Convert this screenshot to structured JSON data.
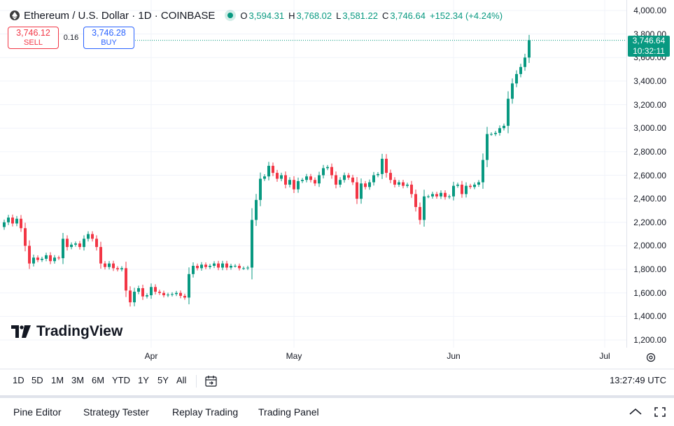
{
  "header": {
    "title": "Ethereum / U.S. Dollar · 1D · COINBASE",
    "ohlc": [
      {
        "key": "O",
        "value": "3,594.31"
      },
      {
        "key": "H",
        "value": "3,768.02"
      },
      {
        "key": "L",
        "value": "3,581.22"
      },
      {
        "key": "C",
        "value": "3,746.64"
      }
    ],
    "change": "+152.34 (+4.24%)",
    "status_color": "#089981"
  },
  "trade": {
    "sell_price": "3,746.12",
    "sell_label": "SELL",
    "spread": "0.16",
    "buy_price": "3,746.28",
    "buy_label": "BUY"
  },
  "last_price": {
    "value": "3,746.64",
    "countdown": "10:32:11"
  },
  "logo_text": "TradingView",
  "chart_data": {
    "type": "candlestick",
    "up_color": "#089981",
    "down_color": "#f23645",
    "y_ticks": [
      "4,000.00",
      "3,800.00",
      "3,600.00",
      "3,400.00",
      "3,200.00",
      "3,000.00",
      "2,800.00",
      "2,600.00",
      "2,400.00",
      "2,200.00",
      "2,000.00",
      "1,800.00",
      "1,600.00",
      "1,400.00",
      "1,200.00"
    ],
    "ylim": [
      1200,
      4000
    ],
    "x_ticks": [
      "Apr",
      "May",
      "Jun",
      "Jul"
    ],
    "last_price": 3746.64,
    "close": [
      2200,
      2240,
      2190,
      2230,
      2150,
      2000,
      1850,
      1900,
      1880,
      1890,
      1920,
      1870,
      1900,
      1895,
      2060,
      1990,
      2010,
      2020,
      1990,
      2060,
      2100,
      2060,
      1990,
      1850,
      1820,
      1850,
      1810,
      1800,
      1810,
      1620,
      1520,
      1610,
      1640,
      1570,
      1580,
      1650,
      1610,
      1600,
      1580,
      1585,
      1590,
      1600,
      1575,
      1560,
      1760,
      1830,
      1810,
      1840,
      1820,
      1830,
      1850,
      1815,
      1850,
      1815,
      1830,
      1830,
      1810,
      1810,
      1815,
      2220,
      2390,
      2570,
      2590,
      2680,
      2620,
      2570,
      2600,
      2520,
      2560,
      2480,
      2550,
      2560,
      2590,
      2560,
      2530,
      2600,
      2660,
      2670,
      2600,
      2520,
      2560,
      2600,
      2580,
      2540,
      2400,
      2530,
      2500,
      2540,
      2600,
      2610,
      2740,
      2620,
      2560,
      2520,
      2540,
      2510,
      2520,
      2440,
      2330,
      2220,
      2420,
      2420,
      2440,
      2420,
      2450,
      2415,
      2420,
      2510,
      2520,
      2440,
      2510,
      2500,
      2520,
      2540,
      2730,
      2950,
      2950,
      2960,
      3000,
      3020,
      3250,
      3380,
      3460,
      3520,
      3600,
      3746.64
    ],
    "x_tick_index": [
      35,
      69,
      107,
      143
    ]
  },
  "range_bar": {
    "buttons": [
      "1D",
      "5D",
      "1M",
      "3M",
      "6M",
      "YTD",
      "1Y",
      "5Y",
      "All"
    ],
    "calendar_icon": "calendar-goto-icon",
    "clock": "13:27:49 UTC"
  },
  "bottom_bar": {
    "tabs": [
      "Pine Editor",
      "Strategy Tester",
      "Replay Trading",
      "Trading Panel"
    ],
    "collapse_icon": "chevron-up-icon",
    "maximize_icon": "maximize-icon"
  },
  "icons": {
    "symbol": "ethereum-logo-icon",
    "settings": "gear-icon"
  }
}
